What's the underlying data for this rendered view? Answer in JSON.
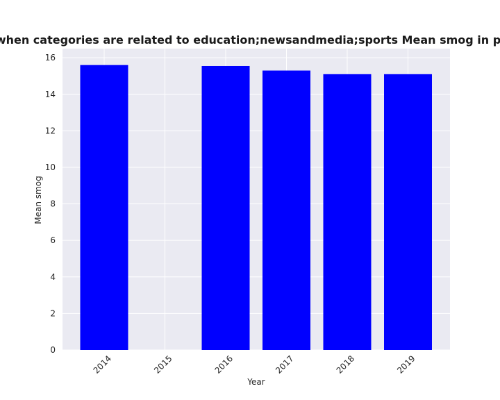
{
  "chart_data": {
    "type": "bar",
    "title": "Percentage of apps when categories are related to education;newsandmedia;sports Mean smog in privacy policies by year",
    "xlabel": "Year",
    "ylabel": "Mean smog",
    "categories": [
      "2014",
      "2015",
      "2016",
      "2017",
      "2018",
      "2019"
    ],
    "values": [
      15.6,
      null,
      15.55,
      15.3,
      15.1,
      15.1
    ],
    "ylim": [
      0,
      16.5
    ],
    "yticks": [
      "0",
      "2",
      "4",
      "6",
      "8",
      "10",
      "12",
      "14",
      "16"
    ],
    "grid": true,
    "legend": "none",
    "colors": {
      "bar": "#0000ff",
      "plot_bg": "#eaeaf2",
      "grid": "#ffffff",
      "text": "#262626"
    }
  }
}
